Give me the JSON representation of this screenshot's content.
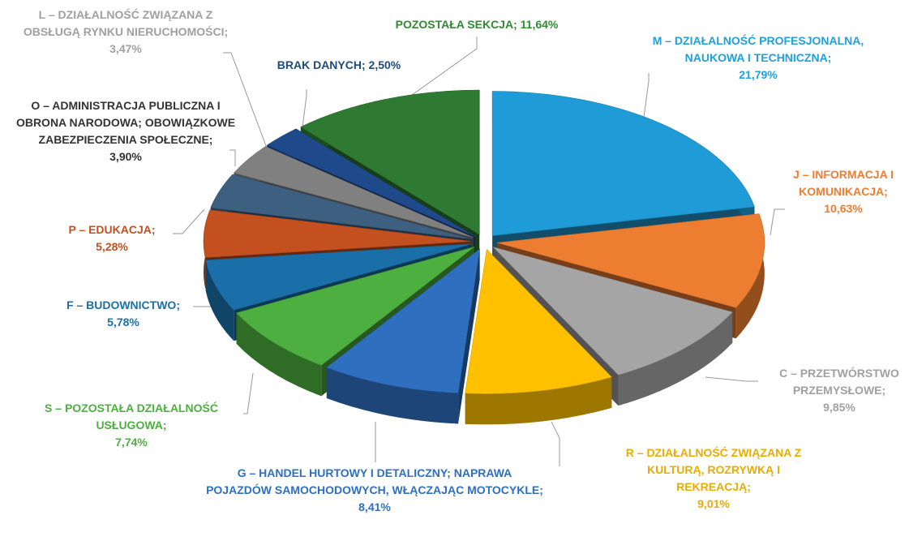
{
  "chart_data": {
    "type": "pie",
    "categories": [
      "M – DZIAŁALNOŚĆ PROFESJONALNA, NAUKOWA I TECHNICZNA;",
      "J – INFORMACJA I KOMUNIKACJA;",
      "C – PRZETWÓRSTWO PRZEMYSŁOWE;",
      "R – DZIAŁALNOŚĆ ZWIĄZANA Z KULTURĄ, ROZRYWKĄ I REKREACJĄ;",
      "G – HANDEL HURTOWY I DETALICZNY; NAPRAWA POJAZDÓW SAMOCHODOWYCH, WŁĄCZAJĄC MOTOCYKLE;",
      "S – POZOSTAŁA DZIAŁALNOŚĆ USŁUGOWA;",
      "F – BUDOWNICTWO;",
      "P – EDUKACJA;",
      "O – ADMINISTRACJA PUBLICZNA I OBRONA NARODOWA; OBOWIĄZKOWE ZABEZPIECZENIA SPOŁECZNE;",
      "L – DZIAŁALNOŚĆ ZWIĄZANA Z OBSŁUGĄ RYNKU NIERUCHOMOŚCI;",
      "BRAK DANYCH;",
      "POZOSTAŁA SEKCJA;"
    ],
    "values": [
      21.79,
      10.63,
      9.85,
      9.01,
      8.41,
      7.74,
      5.78,
      5.28,
      3.9,
      3.47,
      2.5,
      11.64
    ],
    "value_labels": [
      "21,79%",
      "10,63%",
      "9,85%",
      "9,01%",
      "8,41%",
      "7,74%",
      "5,78%",
      "5,28%",
      "3,90%",
      "3,47%",
      "2,50%",
      "11,64%"
    ],
    "colors": [
      "#1f9bd7",
      "#ed7d31",
      "#a5a5a5",
      "#ffc000",
      "#2e6fc0",
      "#4caf3f",
      "#1a6fa8",
      "#c5501f",
      "#3d5f80",
      "#808080",
      "#1e4a8c",
      "#2f7a32"
    ],
    "label_colors": [
      "#1ea1dc",
      "#ed7d31",
      "#a0a0a0",
      "#e8ad00",
      "#2e6fc0",
      "#4caf3f",
      "#1a6fa8",
      "#c5501f",
      "#333333",
      "#a0a0a0",
      "#1e4a7c",
      "#2f8a32"
    ]
  }
}
